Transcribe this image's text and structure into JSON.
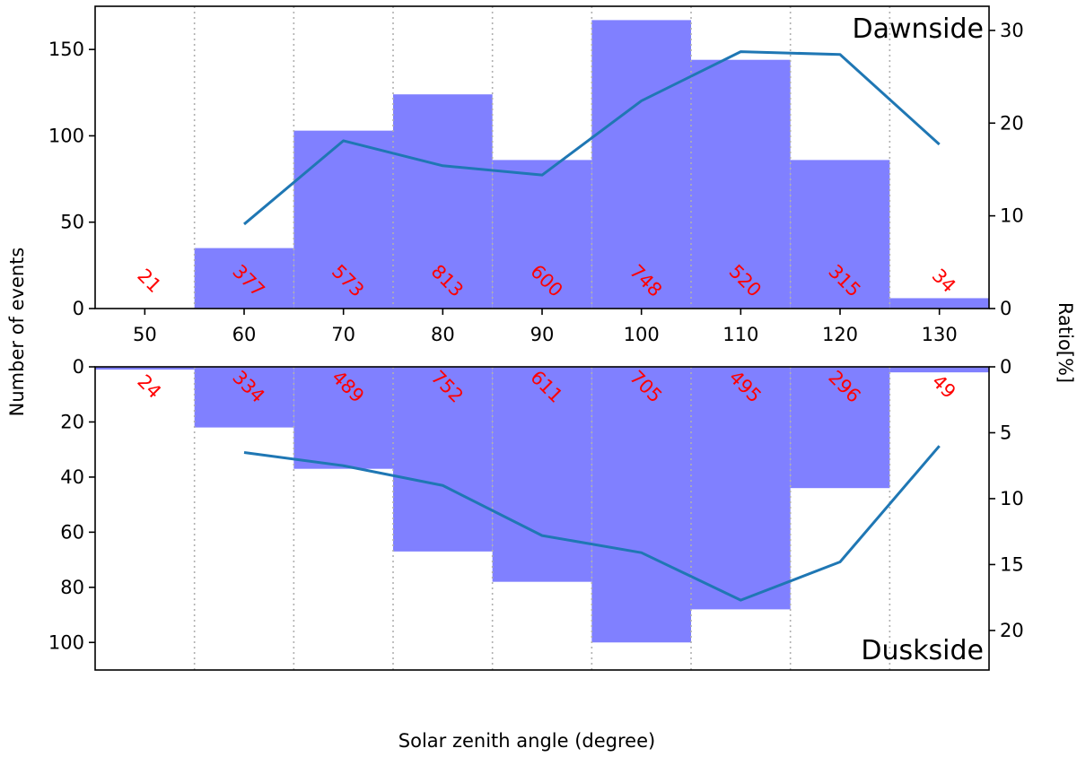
{
  "chart_data": [
    {
      "type": "bar",
      "panel": "top",
      "title": "Dawnside",
      "xlabel": "Solar zenith angle (degree)",
      "ylabel": "Number of events",
      "y2label": "Ratio[%]",
      "x": [
        50,
        60,
        70,
        80,
        90,
        100,
        110,
        120,
        130
      ],
      "xlim": [
        45,
        135
      ],
      "ylim": [
        0,
        175
      ],
      "y2lim": [
        0,
        32.6
      ],
      "yticks": [
        0,
        50,
        100,
        150
      ],
      "y2ticks": [
        0,
        10,
        20,
        30
      ],
      "xticks": [
        50,
        60,
        70,
        80,
        90,
        100,
        110,
        120,
        130
      ],
      "grid": "vertical dotted at bin edges",
      "series": [
        {
          "type": "bar",
          "values": [
            0,
            35,
            103,
            124,
            86,
            167,
            144,
            86,
            6
          ],
          "color": "#8080ff"
        },
        {
          "type": "line",
          "axis": "right",
          "x": [
            60,
            70,
            80,
            90,
            100,
            110,
            120,
            130
          ],
          "values": [
            9.1,
            18.1,
            15.4,
            14.4,
            22.4,
            27.7,
            27.4,
            17.7
          ],
          "color": "#1f77b4"
        }
      ],
      "annotations": [
        "21",
        "377",
        "573",
        "813",
        "600",
        "748",
        "520",
        "315",
        "34"
      ]
    },
    {
      "type": "bar",
      "panel": "bottom",
      "title": "Duskside",
      "x": [
        50,
        60,
        70,
        80,
        90,
        100,
        110,
        120,
        130
      ],
      "xlim": [
        45,
        135
      ],
      "ylim": [
        0,
        110
      ],
      "y2lim": [
        0,
        23
      ],
      "yticks": [
        0,
        20,
        40,
        60,
        80,
        100
      ],
      "y2ticks": [
        0,
        5,
        10,
        15,
        20
      ],
      "inverted": true,
      "grid": "vertical dotted at bin edges",
      "series": [
        {
          "type": "bar",
          "values": [
            1,
            22,
            37,
            67,
            78,
            100,
            88,
            44,
            2
          ],
          "color": "#8080ff"
        },
        {
          "type": "line",
          "axis": "right",
          "x": [
            60,
            70,
            80,
            90,
            100,
            110,
            120,
            130
          ],
          "values": [
            6.5,
            7.5,
            9.0,
            12.8,
            14.1,
            17.7,
            14.8,
            6.0
          ],
          "color": "#1f77b4"
        }
      ],
      "annotations": [
        "24",
        "334",
        "489",
        "752",
        "611",
        "705",
        "495",
        "296",
        "49"
      ]
    }
  ]
}
